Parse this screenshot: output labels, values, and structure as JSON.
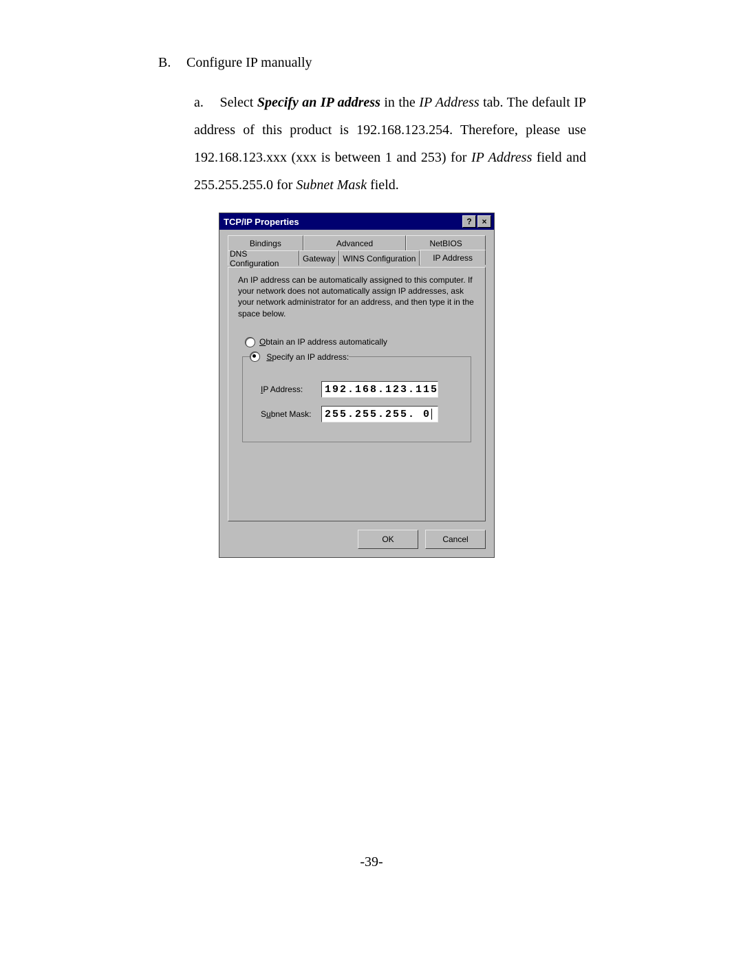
{
  "page_number": "-39-",
  "section": {
    "label": "B.",
    "title": "Configure IP manually"
  },
  "subitem": {
    "label": "a.",
    "text_1a": "Select ",
    "text_bold": "Specify an IP address",
    "text_1b": " in the ",
    "text_ital1": "IP Address",
    "text_1c": " tab. The default IP address of this product is 192.168.123.254. Therefore, please use 192.168.123.xxx (xxx is between 1 and 253) for ",
    "text_ital2": "IP Address",
    "text_1d": " field and 255.255.255.0 for ",
    "text_ital3": "Subnet Mask",
    "text_1e": " field."
  },
  "dialog": {
    "title": "TCP/IP Properties",
    "help_btn": "?",
    "close_btn": "×",
    "tabs": {
      "bindings": "Bindings",
      "advanced": "Advanced",
      "netbios": "NetBIOS",
      "dns": "DNS Configuration",
      "gateway": "Gateway",
      "wins": "WINS Configuration",
      "ip": "IP Address"
    },
    "description": "An IP address can be automatically assigned to this computer. If your network does not automatically assign IP addresses, ask your network administrator for an address, and then type it in the space below.",
    "radio_auto": {
      "ul": "O",
      "rest": "btain an IP address automatically"
    },
    "radio_spec": {
      "ul": "S",
      "rest": "pecify an IP address:"
    },
    "ip_label": {
      "ul": "I",
      "rest": "P Address:"
    },
    "ip_value": "192.168.123.115",
    "mask_label": {
      "pre": "S",
      "ul": "u",
      "rest": "bnet Mask:"
    },
    "mask_value": "255.255.255. 0",
    "ok": "OK",
    "cancel": "Cancel"
  }
}
